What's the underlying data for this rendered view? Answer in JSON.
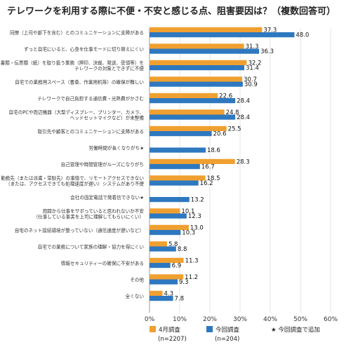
{
  "chart_data": {
    "type": "bar",
    "orientation": "horizontal",
    "title": "テレワークを利用する際に不便・不安と感じる点、阻害要因は？（複数回答可）",
    "xlim": [
      0,
      60
    ],
    "xticks": [
      "0%",
      "10%",
      "20%",
      "30%",
      "40%",
      "50%",
      "60%"
    ],
    "grid": true,
    "categories": [
      [
        "同僚（上司や部下を含む）とのコミュニケーションに支障がある"
      ],
      [
        "ずっと自宅にいると、心身を仕事モードに切り替えにくい"
      ],
      [
        "書類・伝票類（紙）を取り扱う業務（押印、決裁、発送、受領等）を",
        "テレワークの対象とできずに不便"
      ],
      [
        "自宅での業務用スペース（書斎、作業用机等）の確保が難しい"
      ],
      [
        "テレワークで自己負担する通信費・光熱費がかさむ"
      ],
      [
        "自宅のPCや周辺機器（大型ディスプレー、プリンター、カメラ、",
        "ヘッドセットマイクなど）が未整備"
      ],
      [
        "取引先や顧客とのコミュニケーションに支障がある"
      ],
      [
        "労働時間が長くなりがち★"
      ],
      [
        "自己管理や時間管理がルーズになりがち"
      ],
      [
        "勤務先（または派遣・常駐先）の事情で、リモートアクセスできない",
        "（または、アクセスできても処理速度が遅い）システムがあり不便"
      ],
      [
        "会社の固定電話で発着信できない★"
      ],
      [
        "周囲から仕事をサボっていると思われないか不安",
        "（仕事している事実を上司に理解してもらいにくい）"
      ],
      [
        "自宅のネット接続環境が整っていない（通信速度が遅いなど）"
      ],
      [
        "自宅での業務について家族の理解・協力を得にくい"
      ],
      [
        "情報セキュリティーの確保に不安がある"
      ],
      [
        "その他"
      ],
      [
        "全くない"
      ]
    ],
    "series": [
      {
        "name": "4月調査",
        "n": "(n=2207)",
        "color": "#f0a030",
        "values": [
          37.3,
          31.3,
          32.2,
          30.7,
          22.6,
          24.8,
          25.5,
          null,
          28.3,
          18.5,
          null,
          10.1,
          13.0,
          5.8,
          11.3,
          11.2,
          4.3
        ]
      },
      {
        "name": "今回調査",
        "n": "(n=204)",
        "color": "#2e78c0",
        "values": [
          48.0,
          36.3,
          31.4,
          30.9,
          28.4,
          28.4,
          20.6,
          18.6,
          16.7,
          16.2,
          13.2,
          12.3,
          10.3,
          8.8,
          6.9,
          9.3,
          7.8
        ]
      }
    ],
    "legend_note": "★ 今回調査で追加",
    "legend_position": "bottom"
  }
}
